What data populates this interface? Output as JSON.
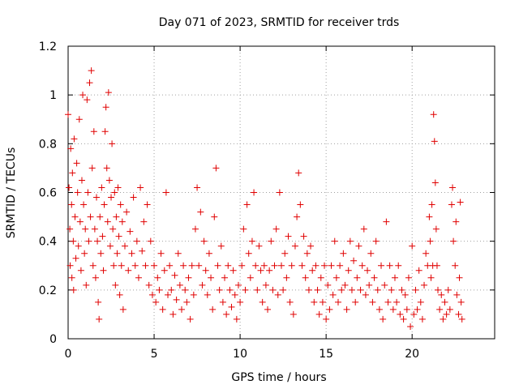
{
  "chart_data": {
    "type": "scatter",
    "title": "Day 071 of 2023, SRMTID for receiver trds",
    "xlabel": "GPS time / hours",
    "ylabel": "SRMTID / TECUs",
    "xlim": [
      0,
      24.8
    ],
    "ylim": [
      0,
      1.2
    ],
    "xticks": [
      0,
      5,
      10,
      15,
      20
    ],
    "yticks": [
      0,
      0.2,
      0.4,
      0.6,
      0.8,
      1,
      1.2
    ],
    "xtick_labels": [
      "0",
      "5",
      "10",
      "15",
      "20"
    ],
    "ytick_labels": [
      "0",
      "0.2",
      "0.4",
      "0.6",
      "0.8",
      "1",
      "1.2"
    ],
    "grid": true,
    "marker": "+",
    "color": "#e00000",
    "series": [
      {
        "name": "SRMTID",
        "points": [
          [
            0.0,
            0.92
          ],
          [
            0.05,
            0.62
          ],
          [
            0.1,
            0.45
          ],
          [
            0.12,
            0.3
          ],
          [
            0.15,
            0.78
          ],
          [
            0.2,
            0.55
          ],
          [
            0.22,
            0.25
          ],
          [
            0.25,
            0.68
          ],
          [
            0.3,
            0.4
          ],
          [
            0.32,
            0.2
          ],
          [
            0.35,
            0.82
          ],
          [
            0.4,
            0.5
          ],
          [
            0.45,
            0.33
          ],
          [
            0.5,
            0.72
          ],
          [
            0.55,
            0.6
          ],
          [
            0.6,
            0.38
          ],
          [
            0.65,
            0.9
          ],
          [
            0.7,
            0.48
          ],
          [
            0.75,
            0.28
          ],
          [
            0.8,
            0.65
          ],
          [
            0.85,
            1.0
          ],
          [
            0.9,
            0.55
          ],
          [
            0.95,
            0.35
          ],
          [
            1.0,
            0.45
          ],
          [
            1.05,
            0.22
          ],
          [
            1.1,
            0.98
          ],
          [
            1.15,
            0.6
          ],
          [
            1.2,
            0.4
          ],
          [
            1.25,
            1.05
          ],
          [
            1.3,
            0.5
          ],
          [
            1.35,
            1.1
          ],
          [
            1.4,
            0.7
          ],
          [
            1.45,
            0.3
          ],
          [
            1.5,
            0.85
          ],
          [
            1.55,
            0.45
          ],
          [
            1.6,
            0.25
          ],
          [
            1.65,
            0.58
          ],
          [
            1.7,
            0.4
          ],
          [
            1.75,
            0.15
          ],
          [
            1.8,
            0.08
          ],
          [
            1.85,
            0.5
          ],
          [
            1.9,
            0.35
          ],
          [
            1.95,
            0.62
          ],
          [
            2.0,
            0.42
          ],
          [
            2.05,
            0.28
          ],
          [
            2.1,
            0.55
          ],
          [
            2.15,
            0.85
          ],
          [
            2.2,
            0.95
          ],
          [
            2.25,
            0.7
          ],
          [
            2.3,
            0.48
          ],
          [
            2.35,
            1.01
          ],
          [
            2.4,
            0.65
          ],
          [
            2.45,
            0.38
          ],
          [
            2.5,
            0.58
          ],
          [
            2.55,
            0.8
          ],
          [
            2.6,
            0.45
          ],
          [
            2.65,
            0.3
          ],
          [
            2.7,
            0.6
          ],
          [
            2.75,
            0.22
          ],
          [
            2.8,
            0.5
          ],
          [
            2.85,
            0.35
          ],
          [
            2.9,
            0.62
          ],
          [
            2.95,
            0.42
          ],
          [
            3.0,
            0.18
          ],
          [
            3.05,
            0.55
          ],
          [
            3.1,
            0.3
          ],
          [
            3.15,
            0.48
          ],
          [
            3.2,
            0.12
          ],
          [
            3.3,
            0.38
          ],
          [
            3.4,
            0.52
          ],
          [
            3.5,
            0.28
          ],
          [
            3.6,
            0.44
          ],
          [
            3.7,
            0.35
          ],
          [
            3.8,
            0.58
          ],
          [
            3.9,
            0.3
          ],
          [
            4.0,
            0.4
          ],
          [
            4.1,
            0.25
          ],
          [
            4.2,
            0.62
          ],
          [
            4.3,
            0.36
          ],
          [
            4.4,
            0.48
          ],
          [
            4.5,
            0.3
          ],
          [
            4.6,
            0.55
          ],
          [
            4.7,
            0.22
          ],
          [
            4.8,
            0.4
          ],
          [
            4.9,
            0.18
          ],
          [
            5.0,
            0.3
          ],
          [
            5.1,
            0.15
          ],
          [
            5.2,
            0.25
          ],
          [
            5.3,
            0.2
          ],
          [
            5.4,
            0.35
          ],
          [
            5.5,
            0.12
          ],
          [
            5.6,
            0.28
          ],
          [
            5.7,
            0.6
          ],
          [
            5.8,
            0.18
          ],
          [
            5.9,
            0.3
          ],
          [
            6.0,
            0.2
          ],
          [
            6.1,
            0.1
          ],
          [
            6.2,
            0.26
          ],
          [
            6.3,
            0.16
          ],
          [
            6.4,
            0.35
          ],
          [
            6.5,
            0.22
          ],
          [
            6.6,
            0.12
          ],
          [
            6.7,
            0.3
          ],
          [
            6.8,
            0.2
          ],
          [
            6.9,
            0.15
          ],
          [
            7.0,
            0.25
          ],
          [
            7.1,
            0.08
          ],
          [
            7.2,
            0.3
          ],
          [
            7.3,
            0.18
          ],
          [
            7.4,
            0.45
          ],
          [
            7.5,
            0.62
          ],
          [
            7.6,
            0.3
          ],
          [
            7.7,
            0.52
          ],
          [
            7.8,
            0.22
          ],
          [
            7.9,
            0.4
          ],
          [
            8.0,
            0.28
          ],
          [
            8.1,
            0.18
          ],
          [
            8.2,
            0.35
          ],
          [
            8.3,
            0.25
          ],
          [
            8.4,
            0.12
          ],
          [
            8.5,
            0.5
          ],
          [
            8.6,
            0.7
          ],
          [
            8.7,
            0.3
          ],
          [
            8.8,
            0.2
          ],
          [
            8.9,
            0.38
          ],
          [
            9.0,
            0.15
          ],
          [
            9.1,
            0.25
          ],
          [
            9.2,
            0.1
          ],
          [
            9.3,
            0.3
          ],
          [
            9.4,
            0.2
          ],
          [
            9.5,
            0.13
          ],
          [
            9.6,
            0.28
          ],
          [
            9.7,
            0.18
          ],
          [
            9.8,
            0.08
          ],
          [
            9.9,
            0.22
          ],
          [
            10.0,
            0.15
          ],
          [
            10.1,
            0.3
          ],
          [
            10.2,
            0.45
          ],
          [
            10.3,
            0.2
          ],
          [
            10.4,
            0.55
          ],
          [
            10.5,
            0.35
          ],
          [
            10.6,
            0.25
          ],
          [
            10.7,
            0.4
          ],
          [
            10.8,
            0.6
          ],
          [
            10.9,
            0.3
          ],
          [
            11.0,
            0.2
          ],
          [
            11.1,
            0.38
          ],
          [
            11.2,
            0.28
          ],
          [
            11.3,
            0.15
          ],
          [
            11.4,
            0.3
          ],
          [
            11.5,
            0.22
          ],
          [
            11.6,
            0.12
          ],
          [
            11.7,
            0.28
          ],
          [
            11.8,
            0.4
          ],
          [
            11.9,
            0.2
          ],
          [
            12.0,
            0.3
          ],
          [
            12.1,
            0.45
          ],
          [
            12.2,
            0.18
          ],
          [
            12.3,
            0.6
          ],
          [
            12.4,
            0.3
          ],
          [
            12.5,
            0.2
          ],
          [
            12.6,
            0.35
          ],
          [
            12.7,
            0.25
          ],
          [
            12.8,
            0.42
          ],
          [
            12.9,
            0.15
          ],
          [
            13.0,
            0.3
          ],
          [
            13.1,
            0.1
          ],
          [
            13.2,
            0.38
          ],
          [
            13.3,
            0.5
          ],
          [
            13.4,
            0.68
          ],
          [
            13.5,
            0.55
          ],
          [
            13.6,
            0.3
          ],
          [
            13.7,
            0.42
          ],
          [
            13.8,
            0.25
          ],
          [
            13.9,
            0.35
          ],
          [
            14.0,
            0.2
          ],
          [
            14.1,
            0.38
          ],
          [
            14.2,
            0.28
          ],
          [
            14.3,
            0.15
          ],
          [
            14.4,
            0.3
          ],
          [
            14.5,
            0.2
          ],
          [
            14.6,
            0.1
          ],
          [
            14.7,
            0.25
          ],
          [
            14.8,
            0.15
          ],
          [
            14.9,
            0.3
          ],
          [
            15.0,
            0.08
          ],
          [
            15.1,
            0.22
          ],
          [
            15.2,
            0.12
          ],
          [
            15.3,
            0.3
          ],
          [
            15.4,
            0.18
          ],
          [
            15.5,
            0.4
          ],
          [
            15.6,
            0.25
          ],
          [
            15.7,
            0.15
          ],
          [
            15.8,
            0.3
          ],
          [
            15.9,
            0.2
          ],
          [
            16.0,
            0.35
          ],
          [
            16.1,
            0.22
          ],
          [
            16.2,
            0.12
          ],
          [
            16.3,
            0.28
          ],
          [
            16.4,
            0.4
          ],
          [
            16.5,
            0.2
          ],
          [
            16.6,
            0.32
          ],
          [
            16.7,
            0.15
          ],
          [
            16.8,
            0.25
          ],
          [
            16.9,
            0.38
          ],
          [
            17.0,
            0.2
          ],
          [
            17.1,
            0.3
          ],
          [
            17.2,
            0.45
          ],
          [
            17.3,
            0.18
          ],
          [
            17.4,
            0.28
          ],
          [
            17.5,
            0.22
          ],
          [
            17.6,
            0.35
          ],
          [
            17.7,
            0.15
          ],
          [
            17.8,
            0.25
          ],
          [
            17.9,
            0.4
          ],
          [
            18.0,
            0.2
          ],
          [
            18.1,
            0.12
          ],
          [
            18.2,
            0.3
          ],
          [
            18.3,
            0.08
          ],
          [
            18.4,
            0.22
          ],
          [
            18.5,
            0.48
          ],
          [
            18.6,
            0.15
          ],
          [
            18.7,
            0.3
          ],
          [
            18.8,
            0.2
          ],
          [
            18.9,
            0.12
          ],
          [
            19.0,
            0.25
          ],
          [
            19.1,
            0.15
          ],
          [
            19.2,
            0.3
          ],
          [
            19.3,
            0.1
          ],
          [
            19.4,
            0.2
          ],
          [
            19.5,
            0.08
          ],
          [
            19.6,
            0.18
          ],
          [
            19.7,
            0.12
          ],
          [
            19.8,
            0.25
          ],
          [
            19.9,
            0.05
          ],
          [
            20.0,
            0.38
          ],
          [
            20.1,
            0.1
          ],
          [
            20.2,
            0.2
          ],
          [
            20.3,
            0.12
          ],
          [
            20.4,
            0.28
          ],
          [
            20.5,
            0.15
          ],
          [
            20.6,
            0.08
          ],
          [
            20.7,
            0.22
          ],
          [
            20.8,
            0.35
          ],
          [
            20.9,
            0.3
          ],
          [
            21.0,
            0.5
          ],
          [
            21.05,
            0.4
          ],
          [
            21.1,
            0.25
          ],
          [
            21.15,
            0.55
          ],
          [
            21.2,
            0.3
          ],
          [
            21.25,
            0.92
          ],
          [
            21.3,
            0.81
          ],
          [
            21.35,
            0.64
          ],
          [
            21.4,
            0.45
          ],
          [
            21.45,
            0.3
          ],
          [
            21.5,
            0.2
          ],
          [
            21.6,
            0.12
          ],
          [
            21.7,
            0.18
          ],
          [
            21.8,
            0.08
          ],
          [
            21.9,
            0.15
          ],
          [
            22.0,
            0.1
          ],
          [
            22.1,
            0.2
          ],
          [
            22.2,
            0.12
          ],
          [
            22.3,
            0.55
          ],
          [
            22.35,
            0.62
          ],
          [
            22.4,
            0.4
          ],
          [
            22.5,
            0.3
          ],
          [
            22.55,
            0.48
          ],
          [
            22.6,
            0.18
          ],
          [
            22.7,
            0.1
          ],
          [
            22.75,
            0.25
          ],
          [
            22.8,
            0.56
          ],
          [
            22.85,
            0.15
          ],
          [
            22.9,
            0.08
          ]
        ]
      }
    ]
  }
}
